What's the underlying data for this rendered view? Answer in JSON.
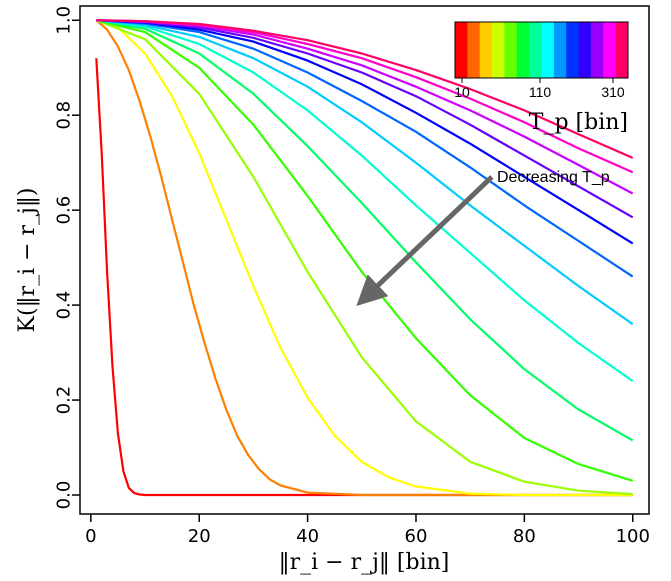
{
  "chart_data": {
    "type": "line",
    "xlabel": "‖r_i − r_j‖ [bin]",
    "ylabel": "K(‖r_i − r_j‖)",
    "xlim": [
      -2,
      103
    ],
    "ylim": [
      -0.04,
      1.03
    ],
    "x_ticks": [
      "0",
      "20",
      "40",
      "60",
      "80",
      "100"
    ],
    "y_ticks": [
      "0.0",
      "0.2",
      "0.4",
      "0.6",
      "0.8",
      "1.0"
    ],
    "grid": false,
    "colorbar": {
      "title": "T_p [bin]",
      "tick_labels": [
        "10",
        "110",
        "310"
      ],
      "colors": [
        "#ff0000",
        "#ff6600",
        "#ffcc00",
        "#ccff00",
        "#66ff00",
        "#00ff33",
        "#00ff99",
        "#00ffff",
        "#0099ff",
        "#0033ff",
        "#3300ff",
        "#9900ff",
        "#ff00ff",
        "#ff0066"
      ]
    },
    "annotation": {
      "text": "Decreasing T_p",
      "arrow_from": [
        74,
        0.67
      ],
      "arrow_to": [
        51,
        0.42
      ]
    },
    "series": [
      {
        "color": "#ff0000",
        "x": [
          1,
          2,
          3,
          4,
          5,
          6,
          7,
          8,
          9,
          10,
          20,
          40,
          60,
          80,
          100
        ],
        "values": [
          0.92,
          0.72,
          0.47,
          0.27,
          0.13,
          0.05,
          0.015,
          0.004,
          0.001,
          0,
          0,
          0,
          0,
          0,
          0
        ]
      },
      {
        "color": "#ff8000",
        "x": [
          1,
          3,
          5,
          7,
          9,
          11,
          13,
          15,
          17,
          19,
          21,
          23,
          25,
          27,
          29,
          31,
          33,
          35,
          40,
          50,
          60,
          80,
          100
        ],
        "values": [
          1.0,
          0.98,
          0.945,
          0.895,
          0.83,
          0.755,
          0.67,
          0.58,
          0.49,
          0.4,
          0.32,
          0.245,
          0.18,
          0.125,
          0.085,
          0.055,
          0.033,
          0.02,
          0.005,
          0,
          0,
          0,
          0
        ]
      },
      {
        "color": "#ffff00",
        "x": [
          1,
          5,
          10,
          15,
          20,
          25,
          30,
          35,
          40,
          45,
          50,
          55,
          60,
          70,
          80,
          100
        ],
        "values": [
          1.0,
          0.985,
          0.93,
          0.84,
          0.72,
          0.58,
          0.44,
          0.31,
          0.205,
          0.125,
          0.07,
          0.037,
          0.018,
          0.003,
          0,
          0
        ]
      },
      {
        "color": "#99ff00",
        "x": [
          1,
          10,
          20,
          30,
          40,
          50,
          60,
          70,
          80,
          90,
          100
        ],
        "values": [
          1.0,
          0.96,
          0.845,
          0.67,
          0.47,
          0.29,
          0.155,
          0.07,
          0.028,
          0.009,
          0.002
        ]
      },
      {
        "color": "#33ff00",
        "x": [
          1,
          10,
          20,
          30,
          40,
          50,
          60,
          70,
          80,
          90,
          100
        ],
        "values": [
          1.0,
          0.975,
          0.9,
          0.78,
          0.63,
          0.47,
          0.33,
          0.21,
          0.12,
          0.065,
          0.03
        ]
      },
      {
        "color": "#00ff66",
        "x": [
          1,
          10,
          20,
          30,
          40,
          50,
          60,
          70,
          80,
          90,
          100
        ],
        "values": [
          1.0,
          0.982,
          0.93,
          0.845,
          0.735,
          0.615,
          0.49,
          0.37,
          0.265,
          0.18,
          0.115
        ]
      },
      {
        "color": "#00ffcc",
        "x": [
          1,
          10,
          20,
          30,
          40,
          50,
          60,
          70,
          80,
          90,
          100
        ],
        "values": [
          1.0,
          0.987,
          0.95,
          0.89,
          0.81,
          0.715,
          0.61,
          0.51,
          0.41,
          0.32,
          0.24
        ]
      },
      {
        "color": "#00ccff",
        "x": [
          1,
          10,
          20,
          30,
          40,
          50,
          60,
          70,
          80,
          90,
          100
        ],
        "values": [
          1.0,
          0.99,
          0.965,
          0.92,
          0.86,
          0.785,
          0.7,
          0.61,
          0.525,
          0.44,
          0.36
        ]
      },
      {
        "color": "#0066ff",
        "x": [
          1,
          10,
          20,
          30,
          40,
          50,
          60,
          70,
          80,
          90,
          100
        ],
        "values": [
          1.0,
          0.993,
          0.975,
          0.94,
          0.89,
          0.83,
          0.765,
          0.69,
          0.61,
          0.535,
          0.46
        ]
      },
      {
        "color": "#0000ff",
        "x": [
          1,
          10,
          20,
          30,
          40,
          50,
          60,
          70,
          80,
          90,
          100
        ],
        "values": [
          1.0,
          0.995,
          0.98,
          0.955,
          0.915,
          0.865,
          0.805,
          0.74,
          0.67,
          0.6,
          0.53
        ]
      },
      {
        "color": "#6600ff",
        "x": [
          1,
          10,
          20,
          30,
          40,
          50,
          60,
          70,
          80,
          90,
          100
        ],
        "values": [
          1.0,
          0.996,
          0.985,
          0.963,
          0.93,
          0.89,
          0.84,
          0.78,
          0.715,
          0.65,
          0.585
        ]
      },
      {
        "color": "#cc00ff",
        "x": [
          1,
          10,
          20,
          30,
          40,
          50,
          60,
          70,
          80,
          90,
          100
        ],
        "values": [
          1.0,
          0.997,
          0.988,
          0.97,
          0.94,
          0.905,
          0.86,
          0.81,
          0.755,
          0.695,
          0.635
        ]
      },
      {
        "color": "#ff00cc",
        "x": [
          1,
          10,
          20,
          30,
          40,
          50,
          60,
          70,
          80,
          90,
          100
        ],
        "values": [
          1.0,
          0.998,
          0.99,
          0.975,
          0.95,
          0.92,
          0.88,
          0.835,
          0.785,
          0.73,
          0.68
        ]
      },
      {
        "color": "#ff0066",
        "x": [
          1,
          10,
          20,
          30,
          40,
          50,
          60,
          70,
          80,
          90,
          100
        ],
        "values": [
          1.0,
          0.998,
          0.992,
          0.978,
          0.958,
          0.93,
          0.895,
          0.855,
          0.81,
          0.76,
          0.71
        ]
      }
    ]
  }
}
